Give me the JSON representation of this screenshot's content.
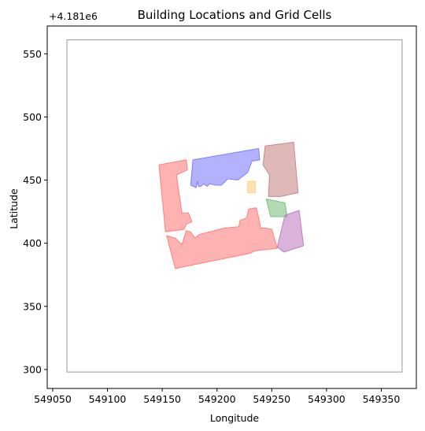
{
  "chart_data": {
    "type": "polygon-map",
    "title": "Building Locations and Grid Cells",
    "xlabel": "Longitude",
    "ylabel": "Latitude",
    "y_offset_label": "+4.181e6",
    "xlim": [
      549045,
      549382
    ],
    "ylim": [
      285,
      572
    ],
    "x_ticks": [
      549050,
      549100,
      549150,
      549200,
      549250,
      549300,
      549350
    ],
    "x_tick_labels": [
      "549050",
      "549100",
      "549150",
      "549200",
      "549250",
      "549300",
      "549350"
    ],
    "y_ticks": [
      300,
      350,
      400,
      450,
      500,
      550
    ],
    "y_tick_labels": [
      "300",
      "350",
      "400",
      "450",
      "500",
      "550"
    ],
    "grid": false,
    "grid_cell": {
      "name": "grid-cell-boundary",
      "color": "#999999",
      "corners": [
        [
          549063,
          298
        ],
        [
          549369,
          298
        ],
        [
          549369,
          561
        ],
        [
          549063,
          561
        ]
      ]
    },
    "buildings": [
      {
        "name": "building-red-west",
        "color": "#ff7f7f",
        "points": [
          [
            549147,
            462
          ],
          [
            549172,
            466
          ],
          [
            549173,
            458
          ],
          [
            549163,
            454
          ],
          [
            549168,
            424
          ],
          [
            549174,
            424
          ],
          [
            549177,
            417
          ],
          [
            549172,
            415
          ],
          [
            549170,
            411
          ],
          [
            549153,
            409
          ]
        ]
      },
      {
        "name": "building-red-south",
        "color": "#ff7f7f",
        "points": [
          [
            549154,
            406
          ],
          [
            549162,
            380
          ],
          [
            549230,
            392
          ],
          [
            549235,
            394
          ],
          [
            549255,
            396
          ],
          [
            549250,
            411
          ],
          [
            549244,
            412
          ],
          [
            549240,
            412
          ],
          [
            549236,
            428
          ],
          [
            549229,
            427
          ],
          [
            549227,
            420
          ],
          [
            549221,
            418
          ],
          [
            549220,
            413
          ],
          [
            549207,
            412
          ],
          [
            549184,
            407
          ],
          [
            549180,
            404
          ],
          [
            549176,
            409
          ],
          [
            549172,
            410
          ],
          [
            549168,
            399
          ],
          [
            549162,
            404
          ]
        ]
      },
      {
        "name": "building-blue",
        "color": "#7f7fff",
        "points": [
          [
            549178,
            466
          ],
          [
            549238,
            475
          ],
          [
            549239,
            466
          ],
          [
            549232,
            465
          ],
          [
            549228,
            456
          ],
          [
            549219,
            450
          ],
          [
            549210,
            451
          ],
          [
            549204,
            446
          ],
          [
            549199,
            446
          ],
          [
            549193,
            447
          ],
          [
            549191,
            445
          ],
          [
            549188,
            447
          ],
          [
            549185,
            445
          ],
          [
            549183,
            445
          ],
          [
            549182,
            449
          ],
          [
            549181,
            444
          ],
          [
            549176,
            446
          ]
        ]
      },
      {
        "name": "building-brown",
        "color": "#c98888",
        "points": [
          [
            549244,
            477
          ],
          [
            549270,
            480
          ],
          [
            549274,
            440
          ],
          [
            549258,
            437
          ],
          [
            549247,
            437
          ],
          [
            549248,
            454
          ],
          [
            549242,
            462
          ]
        ]
      },
      {
        "name": "building-orange",
        "color": "#ffd080",
        "points": [
          [
            549228,
            449
          ],
          [
            549235,
            449
          ],
          [
            549235,
            440
          ],
          [
            549228,
            440
          ]
        ]
      },
      {
        "name": "building-green",
        "color": "#80c080",
        "points": [
          [
            549245,
            435
          ],
          [
            549262,
            432
          ],
          [
            549264,
            421
          ],
          [
            549249,
            421
          ]
        ]
      },
      {
        "name": "building-purple",
        "color": "#c080c0",
        "points": [
          [
            549262,
            422
          ],
          [
            549275,
            426
          ],
          [
            549279,
            398
          ],
          [
            549261,
            393
          ],
          [
            549255,
            397
          ]
        ]
      }
    ]
  }
}
